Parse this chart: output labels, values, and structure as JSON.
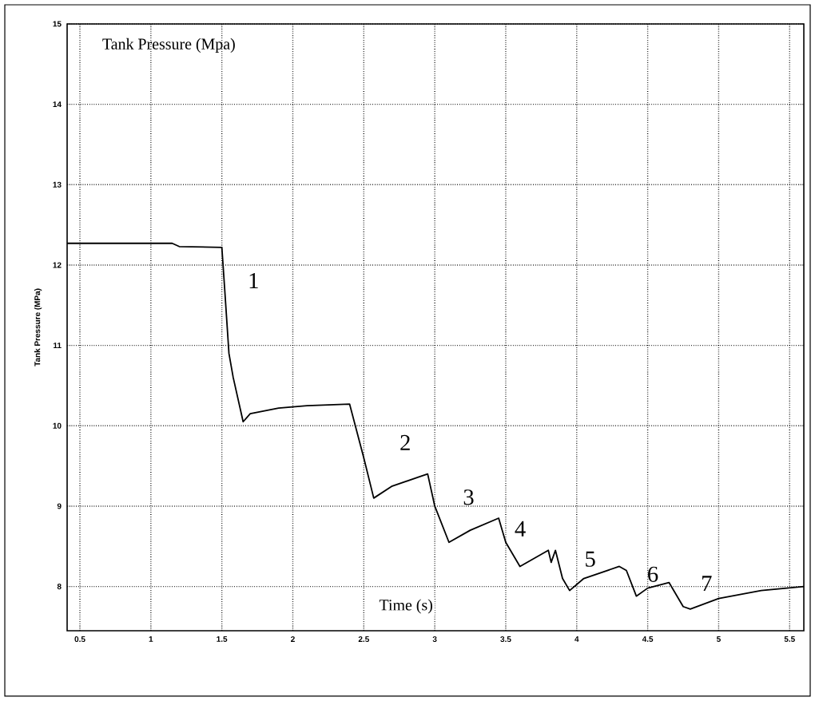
{
  "chart_data": {
    "type": "line",
    "title": "Tank Pressure (Mpa)",
    "xlabel": "Time (s)",
    "ylabel": "Tank Pressure (MPa)",
    "x": [
      0.41,
      0.8,
      1.15,
      1.2,
      1.5,
      1.52,
      1.55,
      1.58,
      1.65,
      1.7,
      1.9,
      2.1,
      2.4,
      2.5,
      2.57,
      2.7,
      2.9,
      2.95,
      3.0,
      3.1,
      3.25,
      3.45,
      3.5,
      3.6,
      3.8,
      3.82,
      3.85,
      3.9,
      3.95,
      4.05,
      4.3,
      4.35,
      4.42,
      4.5,
      4.65,
      4.75,
      4.8,
      5.0,
      5.3,
      5.6
    ],
    "series": [
      {
        "color": "#000000",
        "values": [
          12.27,
          12.27,
          12.27,
          12.23,
          12.22,
          11.7,
          10.9,
          10.6,
          10.05,
          10.15,
          10.22,
          10.25,
          10.27,
          9.6,
          9.1,
          9.25,
          9.37,
          9.4,
          9.0,
          8.55,
          8.7,
          8.85,
          8.55,
          8.25,
          8.45,
          8.3,
          8.45,
          8.1,
          7.95,
          8.1,
          8.25,
          8.2,
          7.88,
          7.98,
          8.05,
          7.75,
          7.72,
          7.85,
          7.95,
          8.0
        ]
      }
    ],
    "annotations": [
      "1",
      "2",
      "3",
      "4",
      "5",
      "6",
      "7"
    ],
    "xlim": [
      0.41,
      5.6
    ],
    "ylim": [
      7.45,
      15
    ],
    "xticks": [
      0.5,
      1,
      1.5,
      2,
      2.5,
      3,
      3.5,
      4,
      4.5,
      5,
      5.5
    ],
    "yticks": [
      8,
      9,
      10,
      11,
      12,
      13,
      14,
      15
    ],
    "grid": true,
    "marker": "none",
    "line_style": "solid"
  }
}
